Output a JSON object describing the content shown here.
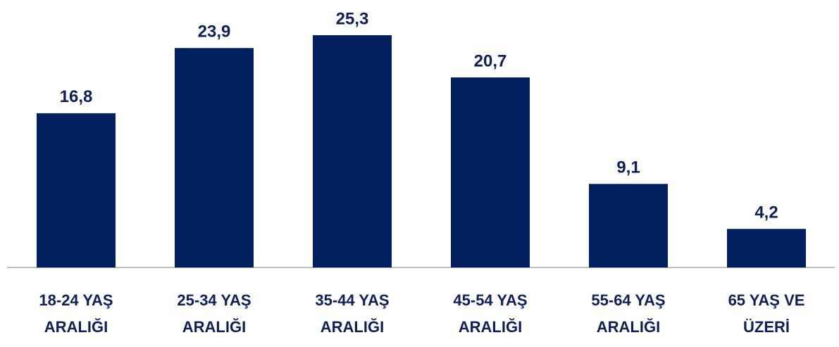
{
  "chart_data": {
    "type": "bar",
    "categories": [
      "18-24 YAŞ\nARALIĞI",
      "25-34 YAŞ\nARALIĞI",
      "35-44 YAŞ\nARALIĞI",
      "45-54 YAŞ\nARALIĞI",
      "55-64 YAŞ\nARALIĞI",
      "65 YAŞ VE\nÜZERİ"
    ],
    "values": [
      16.8,
      23.9,
      25.3,
      20.7,
      9.1,
      4.2
    ],
    "value_labels": [
      "16,8",
      "23,9",
      "25,3",
      "20,7",
      "9,1",
      "4,2"
    ],
    "color": "#03205e"
  }
}
